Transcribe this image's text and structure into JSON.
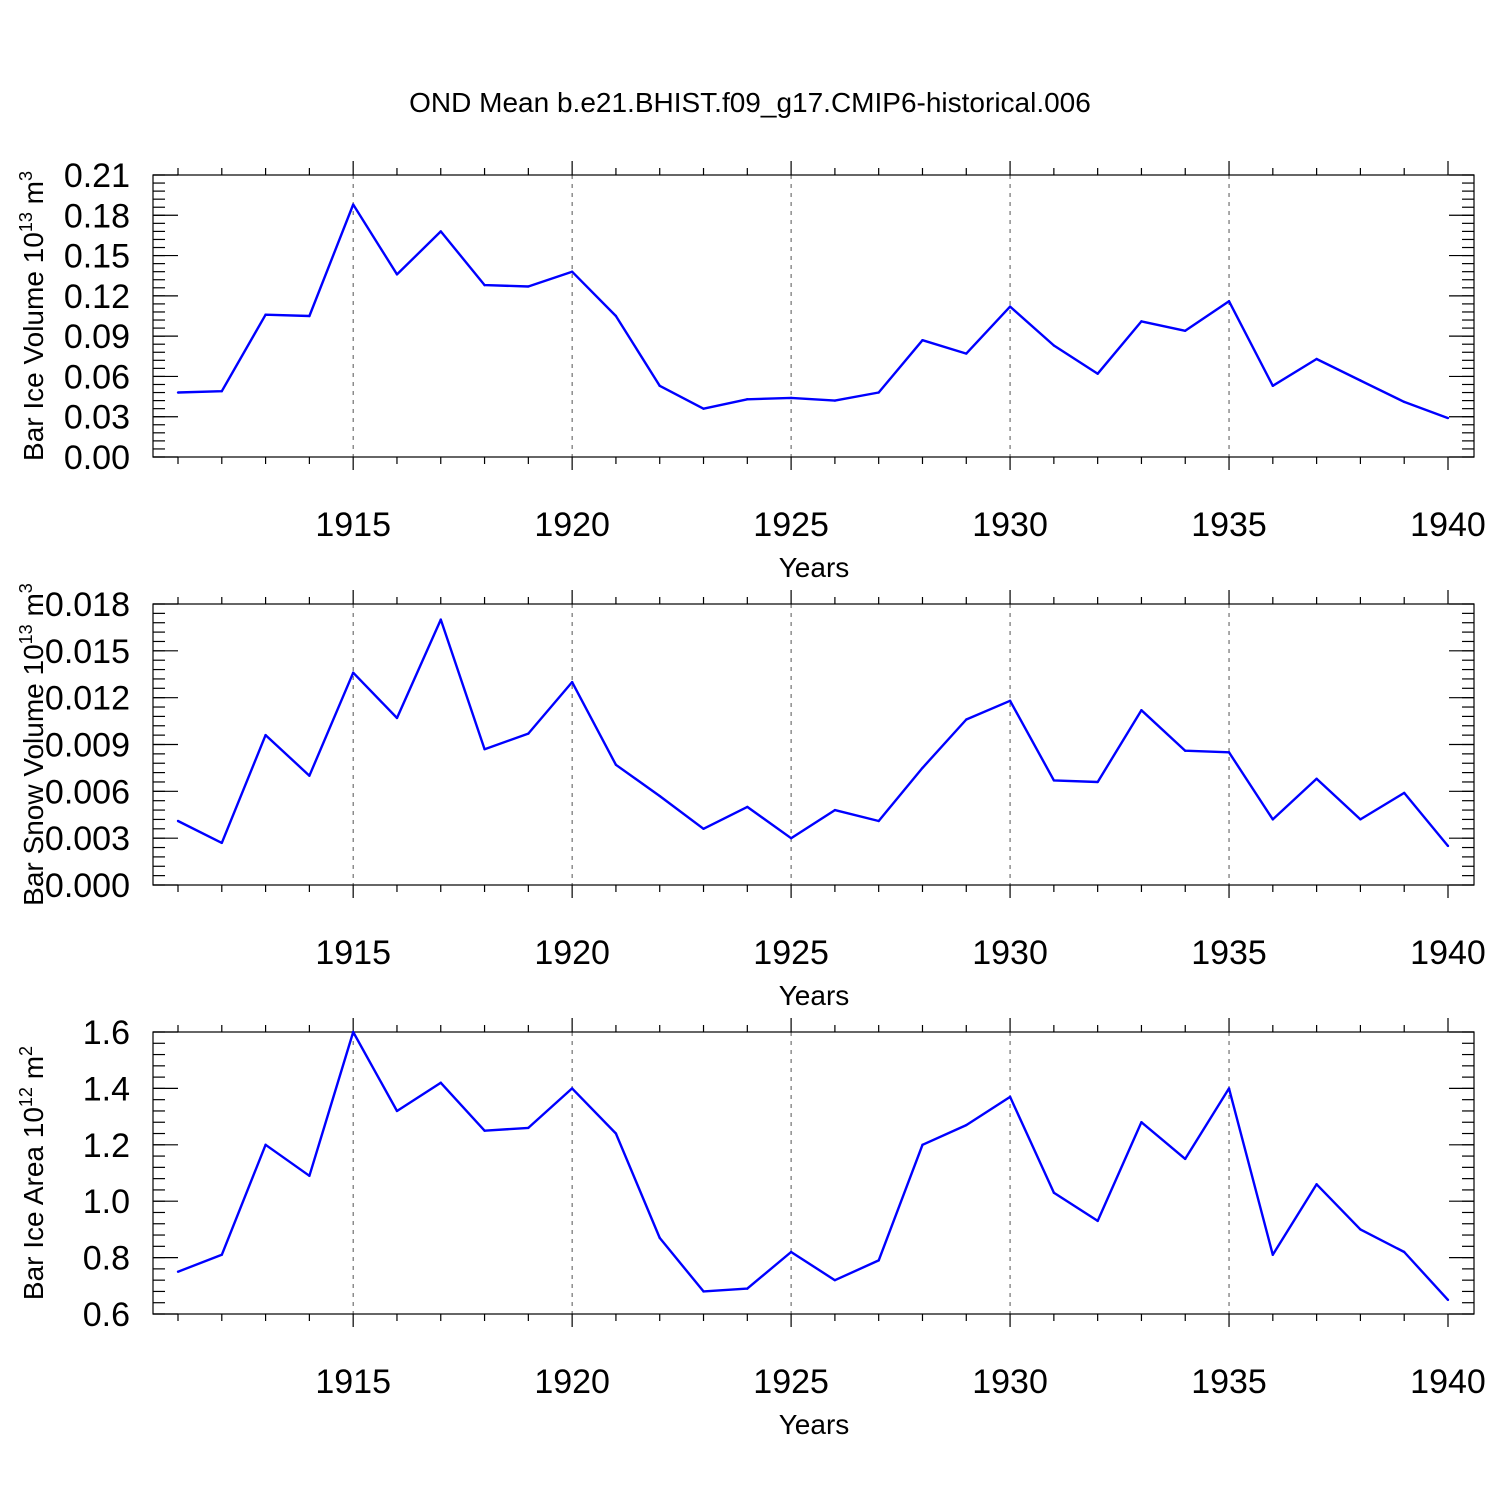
{
  "figure_title": "OND Mean b.e21.BHIST.f09_g17.CMIP6-historical.006",
  "chart_data": [
    {
      "type": "line",
      "ylabel": {
        "prefix": "Bar Ice Volume 10",
        "exp": "13",
        "unit": " m",
        "unit_exp": "3"
      },
      "xlabel": "Years",
      "xlim": [
        1911,
        1940
      ],
      "ylim": [
        0.0,
        0.21
      ],
      "x_major_ticks": [
        1915,
        1920,
        1925,
        1930,
        1935,
        1940
      ],
      "y_ticks": [
        0.0,
        0.03,
        0.06,
        0.09,
        0.12,
        0.15,
        0.18,
        0.21
      ],
      "y_tick_labels": [
        "0.00",
        "0.03",
        "0.06",
        "0.09",
        "0.12",
        "0.15",
        "0.18",
        "0.21"
      ],
      "y_minor_step": 0.006,
      "line_color": "#0000ff",
      "series": [
        {
          "name": "Bar Ice Volume",
          "x": [
            1911,
            1912,
            1913,
            1914,
            1915,
            1916,
            1917,
            1918,
            1919,
            1920,
            1921,
            1922,
            1923,
            1924,
            1925,
            1926,
            1927,
            1928,
            1929,
            1930,
            1931,
            1932,
            1933,
            1934,
            1935,
            1936,
            1937,
            1938,
            1939,
            1940
          ],
          "values": [
            0.048,
            0.049,
            0.106,
            0.105,
            0.188,
            0.136,
            0.168,
            0.128,
            0.127,
            0.138,
            0.105,
            0.053,
            0.036,
            0.043,
            0.044,
            0.042,
            0.048,
            0.087,
            0.077,
            0.112,
            0.083,
            0.062,
            0.101,
            0.094,
            0.116,
            0.053,
            0.073,
            0.057,
            0.041,
            0.029
          ]
        }
      ]
    },
    {
      "type": "line",
      "ylabel": {
        "prefix": "Bar Snow Volume 10",
        "exp": "13",
        "unit": " m",
        "unit_exp": "3"
      },
      "xlabel": "Years",
      "xlim": [
        1911,
        1940
      ],
      "ylim": [
        0.0,
        0.018
      ],
      "x_major_ticks": [
        1915,
        1920,
        1925,
        1930,
        1935,
        1940
      ],
      "y_ticks": [
        0.0,
        0.003,
        0.006,
        0.009,
        0.012,
        0.015,
        0.018
      ],
      "y_tick_labels": [
        "0.000",
        "0.003",
        "0.006",
        "0.009",
        "0.012",
        "0.015",
        "0.018"
      ],
      "y_minor_step": 0.0006,
      "line_color": "#0000ff",
      "series": [
        {
          "name": "Bar Snow Volume",
          "x": [
            1911,
            1912,
            1913,
            1914,
            1915,
            1916,
            1917,
            1918,
            1919,
            1920,
            1921,
            1922,
            1923,
            1924,
            1925,
            1926,
            1927,
            1928,
            1929,
            1930,
            1931,
            1932,
            1933,
            1934,
            1935,
            1936,
            1937,
            1938,
            1939,
            1940
          ],
          "values": [
            0.0041,
            0.0027,
            0.0096,
            0.007,
            0.0136,
            0.0107,
            0.017,
            0.0087,
            0.0097,
            0.013,
            0.0077,
            0.0057,
            0.0036,
            0.005,
            0.003,
            0.0048,
            0.0041,
            0.0075,
            0.0106,
            0.0118,
            0.0067,
            0.0066,
            0.0112,
            0.0086,
            0.0085,
            0.0042,
            0.0068,
            0.0042,
            0.0059,
            0.0025
          ]
        }
      ]
    },
    {
      "type": "line",
      "ylabel": {
        "prefix": "Bar Ice Area 10",
        "exp": "12",
        "unit": " m",
        "unit_exp": "2"
      },
      "xlabel": "Years",
      "xlim": [
        1911,
        1940
      ],
      "ylim": [
        0.6,
        1.6
      ],
      "x_major_ticks": [
        1915,
        1920,
        1925,
        1930,
        1935,
        1940
      ],
      "y_ticks": [
        0.6,
        0.8,
        1.0,
        1.2,
        1.4,
        1.6
      ],
      "y_tick_labels": [
        "0.6",
        "0.8",
        "1.0",
        "1.2",
        "1.4",
        "1.6"
      ],
      "y_minor_step": 0.04,
      "line_color": "#0000ff",
      "series": [
        {
          "name": "Bar Ice Area",
          "x": [
            1911,
            1912,
            1913,
            1914,
            1915,
            1916,
            1917,
            1918,
            1919,
            1920,
            1921,
            1922,
            1923,
            1924,
            1925,
            1926,
            1927,
            1928,
            1929,
            1930,
            1931,
            1932,
            1933,
            1934,
            1935,
            1936,
            1937,
            1938,
            1939,
            1940
          ],
          "values": [
            0.75,
            0.81,
            1.2,
            1.09,
            1.6,
            1.32,
            1.42,
            1.25,
            1.26,
            1.4,
            1.24,
            0.87,
            0.68,
            0.69,
            0.82,
            0.72,
            0.79,
            1.2,
            1.27,
            1.37,
            1.03,
            0.93,
            1.28,
            1.15,
            1.4,
            0.81,
            1.06,
            0.9,
            0.82,
            0.65
          ]
        }
      ]
    }
  ]
}
